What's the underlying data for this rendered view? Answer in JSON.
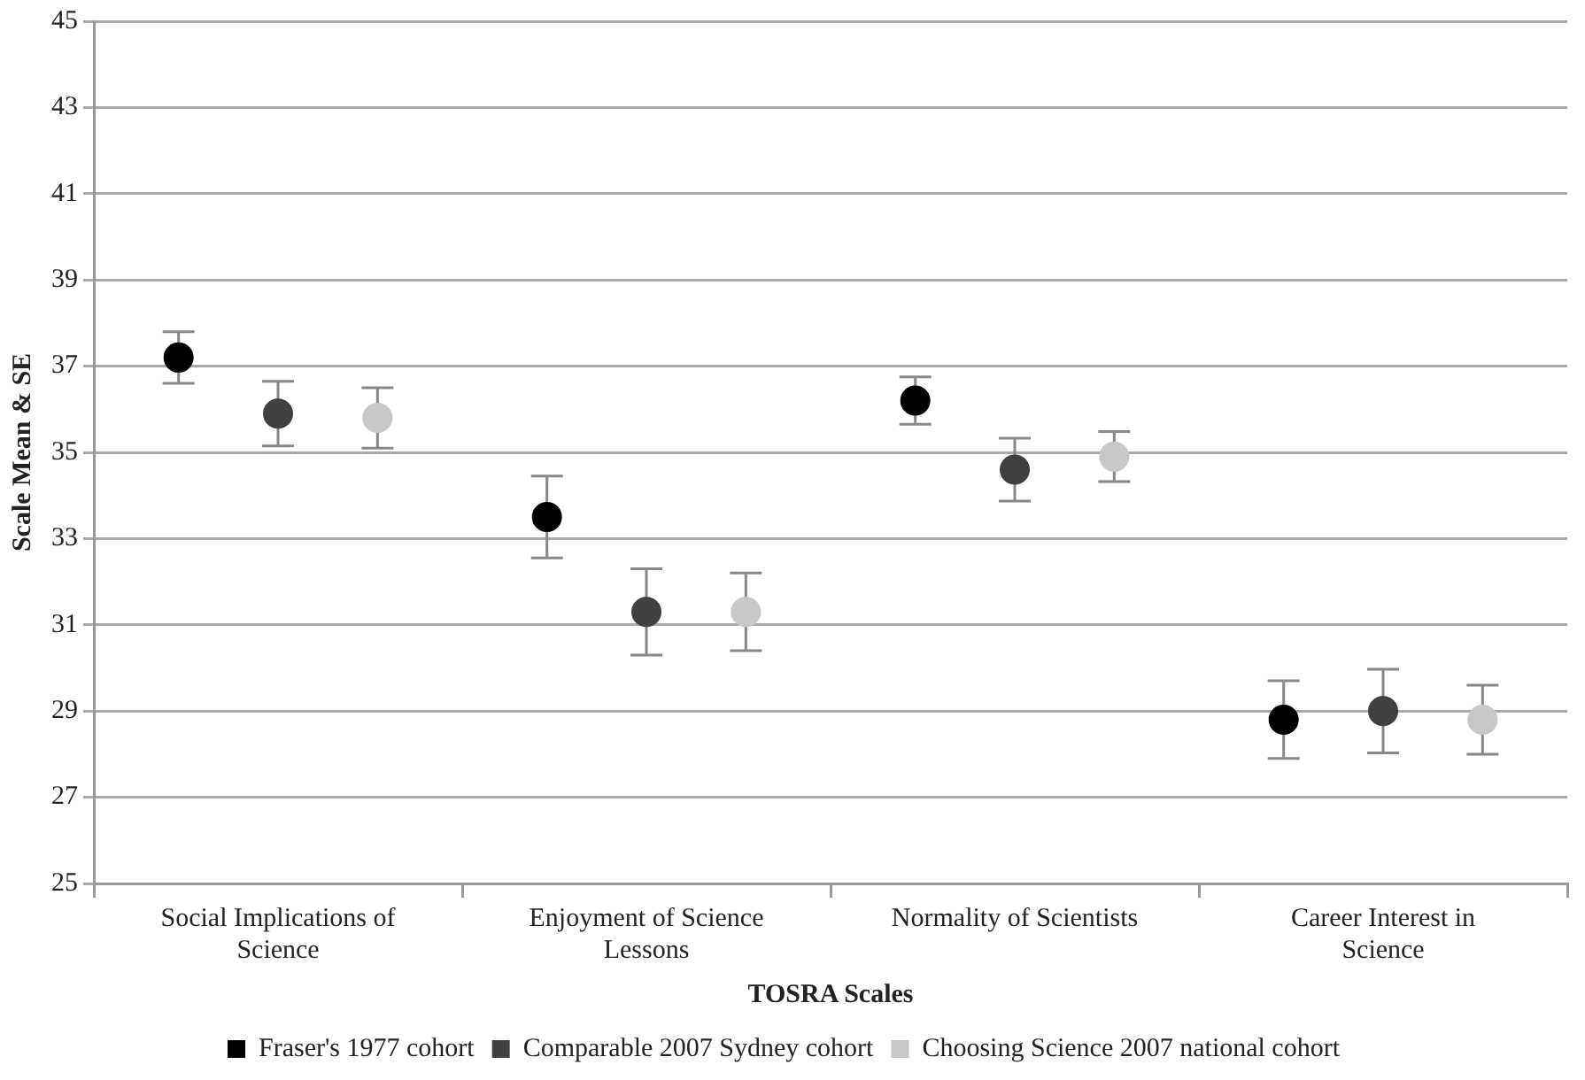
{
  "chart_data": {
    "type": "scatter",
    "xlabel": "TOSRA Scales",
    "ylabel": "Scale Mean & SE",
    "categories": [
      "Social Implications of Science",
      "Enjoyment of Science Lessons",
      "Normality of Scientists",
      "Career Interest in Science"
    ],
    "series": [
      {
        "name": "Fraser's 1977 cohort",
        "color": "#000000",
        "values": [
          37.2,
          33.5,
          36.2,
          28.8
        ],
        "errors": [
          0.6,
          0.95,
          0.55,
          0.9
        ]
      },
      {
        "name": "Comparable 2007 Sydney cohort",
        "color": "#404040",
        "values": [
          35.9,
          31.3,
          34.6,
          29.0
        ],
        "errors": [
          0.75,
          1.0,
          0.73,
          0.97
        ]
      },
      {
        "name": "Choosing Science 2007 national cohort",
        "color": "#c8c8c8",
        "values": [
          35.8,
          31.3,
          34.9,
          28.8
        ],
        "errors": [
          0.7,
          0.9,
          0.58,
          0.8
        ]
      }
    ],
    "ylim": [
      25,
      45
    ],
    "yticks": [
      25,
      27,
      29,
      31,
      33,
      35,
      37,
      39,
      41,
      43,
      45
    ],
    "grid": "y",
    "legend": "bottom",
    "marker": "circle"
  }
}
